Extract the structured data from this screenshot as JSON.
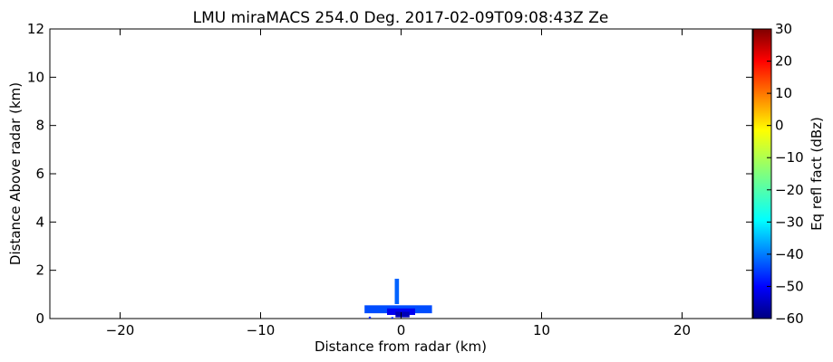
{
  "chart_data": {
    "type": "heatmap",
    "title": "LMU miraMACS 254.0 Deg. 2017-02-09T09:08:43Z  Ze",
    "xlabel": "Distance from radar (km)",
    "ylabel": "Distance Above radar  (km)",
    "xlim": [
      -25,
      25
    ],
    "ylim": [
      0,
      12
    ],
    "x_ticks": [
      -20,
      -10,
      0,
      10,
      20
    ],
    "x_tick_labels": [
      "−20",
      "−10",
      "0",
      "10",
      "20"
    ],
    "y_ticks": [
      0,
      2,
      4,
      6,
      8,
      10,
      12
    ],
    "y_tick_labels": [
      "0",
      "2",
      "4",
      "6",
      "8",
      "10",
      "12"
    ],
    "colorbar": {
      "label": "Eq refl fact (dBz)",
      "range": [
        -60,
        30
      ],
      "ticks": [
        -60,
        -50,
        -40,
        -30,
        -20,
        -10,
        0,
        10,
        20,
        30
      ],
      "tick_labels": [
        "−60",
        "−50",
        "−40",
        "−30",
        "−20",
        "−10",
        "0",
        "10",
        "20",
        "30"
      ],
      "colormap": "jet",
      "colors": [
        "#00007f",
        "#0000ff",
        "#007fff",
        "#00ffff",
        "#7fff7f",
        "#ffff00",
        "#ff7f00",
        "#ff0000",
        "#7f0000"
      ]
    },
    "grid": false,
    "echoes": [
      {
        "x0": -2.6,
        "x1": 2.2,
        "y0": 0.22,
        "y1": 0.55,
        "dbz": -42
      },
      {
        "x0": -1.0,
        "x1": 1.0,
        "y0": 0.15,
        "y1": 0.42,
        "dbz": -50
      },
      {
        "x0": -0.4,
        "x1": 0.6,
        "y0": 0.05,
        "y1": 0.28,
        "dbz": -55
      },
      {
        "x0": -0.45,
        "x1": -0.15,
        "y0": 0.6,
        "y1": 1.65,
        "dbz": -40
      },
      {
        "x0": -2.3,
        "x1": -2.15,
        "y0": 0.0,
        "y1": 0.08,
        "dbz": -45
      },
      {
        "x0": -0.7,
        "x1": -0.55,
        "y0": 0.0,
        "y1": 0.06,
        "dbz": -45
      }
    ]
  }
}
